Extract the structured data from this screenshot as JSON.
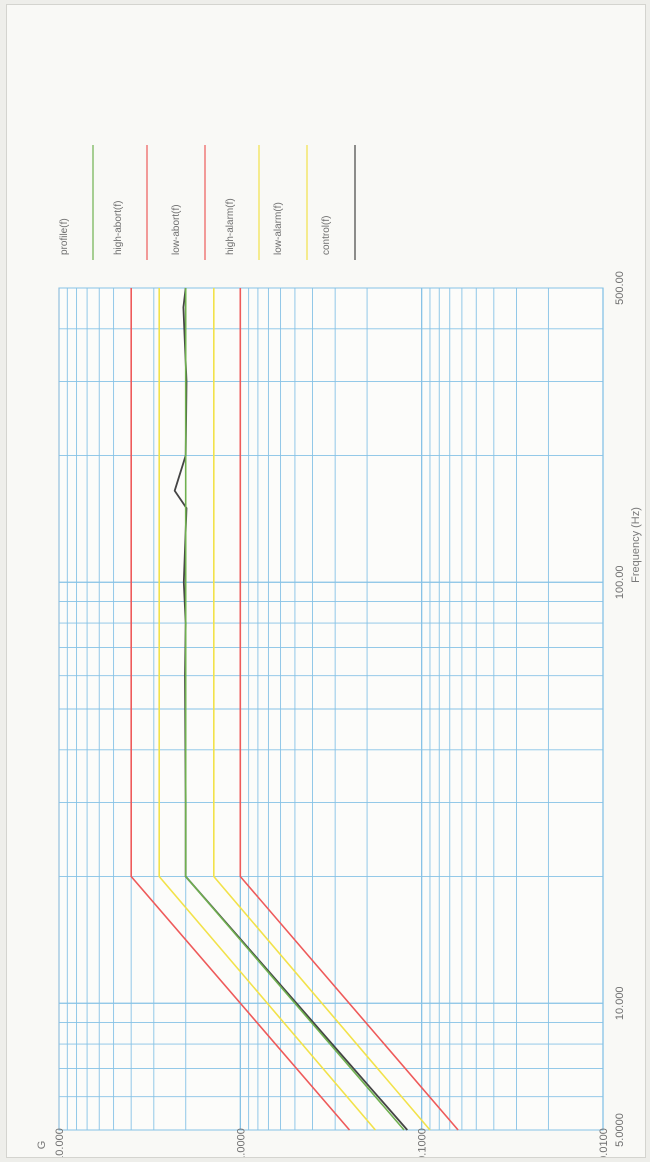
{
  "chart_data": {
    "type": "line",
    "xlabel": "Frequency (Hz)",
    "ylabel": "G",
    "xscale": "log",
    "yscale": "log",
    "xlim": [
      5,
      500
    ],
    "ylim": [
      0.01,
      10
    ],
    "orientation": "rotated 90° clockwise (frequency axis vertical, G axis horizontal)",
    "grid": true,
    "legend_position": "right",
    "x_ticks": [
      {
        "value": 5,
        "label": "5.0000"
      },
      {
        "value": 10,
        "label": "10.000"
      },
      {
        "value": 100,
        "label": "100.00"
      },
      {
        "value": 500,
        "label": "500.00"
      }
    ],
    "y_ticks": [
      {
        "value": 10,
        "label": "10.000"
      },
      {
        "value": 1,
        "label": "1.0000"
      },
      {
        "value": 0.1,
        "label": "0.1000"
      },
      {
        "value": 0.01,
        "label": "0.0100"
      }
    ],
    "series": [
      {
        "name": "profile(f)",
        "color": "#6fb04f",
        "x": [
          5,
          20,
          500
        ],
        "y": [
          0.125,
          2.0,
          2.0
        ]
      },
      {
        "name": "high-abort(f)",
        "color": "#ee5a5a",
        "x": [
          5,
          20,
          500
        ],
        "y": [
          0.25,
          4.0,
          4.0
        ]
      },
      {
        "name": "low-abort(f)",
        "color": "#ee5a5a",
        "x": [
          5,
          20,
          500
        ],
        "y": [
          0.063,
          1.0,
          1.0
        ]
      },
      {
        "name": "high-alarm(f)",
        "color": "#f2e24a",
        "x": [
          5,
          20,
          500
        ],
        "y": [
          0.18,
          2.8,
          2.8
        ]
      },
      {
        "name": "low-alarm(f)",
        "color": "#f2e24a",
        "x": [
          5,
          20,
          500
        ],
        "y": [
          0.09,
          1.4,
          1.4
        ]
      },
      {
        "name": "control(f)",
        "color": "#444444",
        "x": [
          5,
          20,
          30,
          60,
          80,
          100,
          150,
          165,
          200,
          300,
          450,
          500
        ],
        "y": [
          0.12,
          2.0,
          2.0,
          2.02,
          2.0,
          2.05,
          1.98,
          2.3,
          2.0,
          1.98,
          2.06,
          2.0
        ]
      }
    ]
  }
}
